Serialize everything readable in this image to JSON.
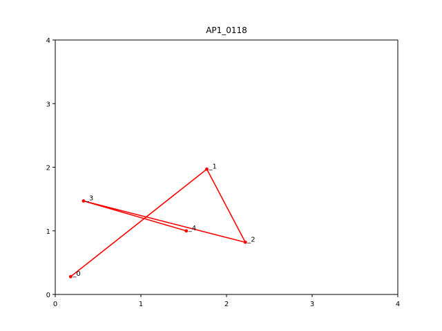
{
  "chart_data": {
    "type": "line",
    "title": "AP1_0118",
    "xlabel": "",
    "ylabel": "",
    "xlim": [
      0,
      4
    ],
    "ylim": [
      0,
      4
    ],
    "xticks": [
      0,
      1,
      2,
      3,
      4
    ],
    "yticks": [
      0,
      1,
      2,
      3,
      4
    ],
    "grid": false,
    "series": [
      {
        "color": "#ff0000",
        "points": [
          {
            "label": "0",
            "x": 0.18,
            "y": 0.28
          },
          {
            "label": "1",
            "x": 1.77,
            "y": 1.97
          },
          {
            "label": "2",
            "x": 2.22,
            "y": 0.82
          },
          {
            "label": "3",
            "x": 0.33,
            "y": 1.47
          },
          {
            "label": "4",
            "x": 1.53,
            "y": 1.0
          }
        ]
      }
    ]
  }
}
